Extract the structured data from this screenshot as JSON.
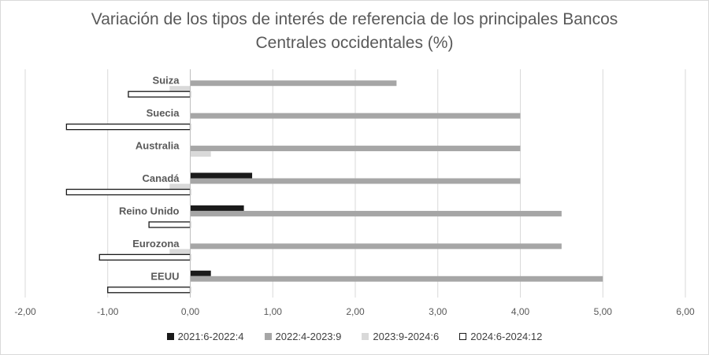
{
  "chart_data": {
    "type": "bar",
    "orientation": "horizontal",
    "title": "Variación de los tipos de interés de referencia de los principales Bancos Centrales occidentales (%)",
    "title_lines": [
      "Variación de los tipos de interés de referencia de los principales Bancos",
      "Centrales occidentales (%)"
    ],
    "categories": [
      "Suiza",
      "Suecia",
      "Australia",
      "Canadá",
      "Reino Unido",
      "Eurozona",
      "EEUU"
    ],
    "series": [
      {
        "name": "2021:6-2022:4",
        "color": "#1a1a1a",
        "values": [
          0,
          0,
          0,
          0.75,
          0.65,
          0,
          0.25
        ]
      },
      {
        "name": "2022:4-2023:9",
        "color": "#a6a6a6",
        "values": [
          2.5,
          4.0,
          4.0,
          4.0,
          4.5,
          4.5,
          5.0
        ]
      },
      {
        "name": "2023:9-2024:6",
        "color": "#d9d9d9",
        "values": [
          -0.25,
          0,
          0.25,
          -0.25,
          0,
          -0.25,
          0
        ]
      },
      {
        "name": "2024:6-2024:12",
        "color": "#ffffff",
        "stroke": "#1a1a1a",
        "values": [
          -0.75,
          -1.5,
          0,
          -1.5,
          -0.5,
          -1.1,
          -1.0
        ]
      }
    ],
    "xlim": [
      -2,
      6
    ],
    "xticks": [
      "-2,00",
      "-1,00",
      "0,00",
      "1,00",
      "2,00",
      "3,00",
      "4,00",
      "5,00",
      "6,00"
    ],
    "grid": "vertical",
    "legend": "bottom"
  }
}
